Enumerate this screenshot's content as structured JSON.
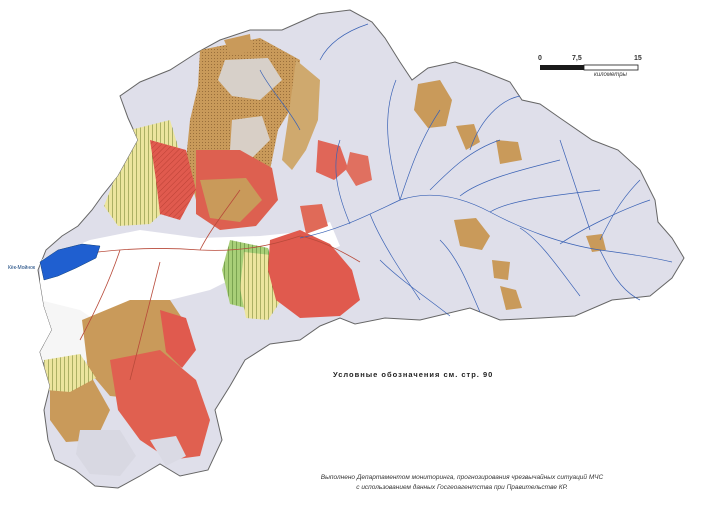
{
  "scale_bar": {
    "ticks": [
      "0",
      "7,5",
      "15"
    ],
    "unit": "километры"
  },
  "legend_reference": "Условные обозначения см. стр. 90",
  "credit": {
    "line1": "Выполнено Департаментом мониторинга, прогнозирования чрезвычайных ситуаций МЧС",
    "line2": "с использованием данных Госгеоагентства при Правительстве КР."
  },
  "lake_label": "Кёк-Мойнок",
  "colors": {
    "background": "#ffffff",
    "outline": "#6a6a6a",
    "basin_lavender": "#dcdce8",
    "rivers": "#3a62b5",
    "lake": "#1f5fd0",
    "hazard_high_red": "#e05a4e",
    "hazard_brown_orange": "#c99a5a",
    "hazard_yellow": "#e9e39a",
    "hazard_green": "#9dc56e",
    "roads": "#b84a3a"
  }
}
